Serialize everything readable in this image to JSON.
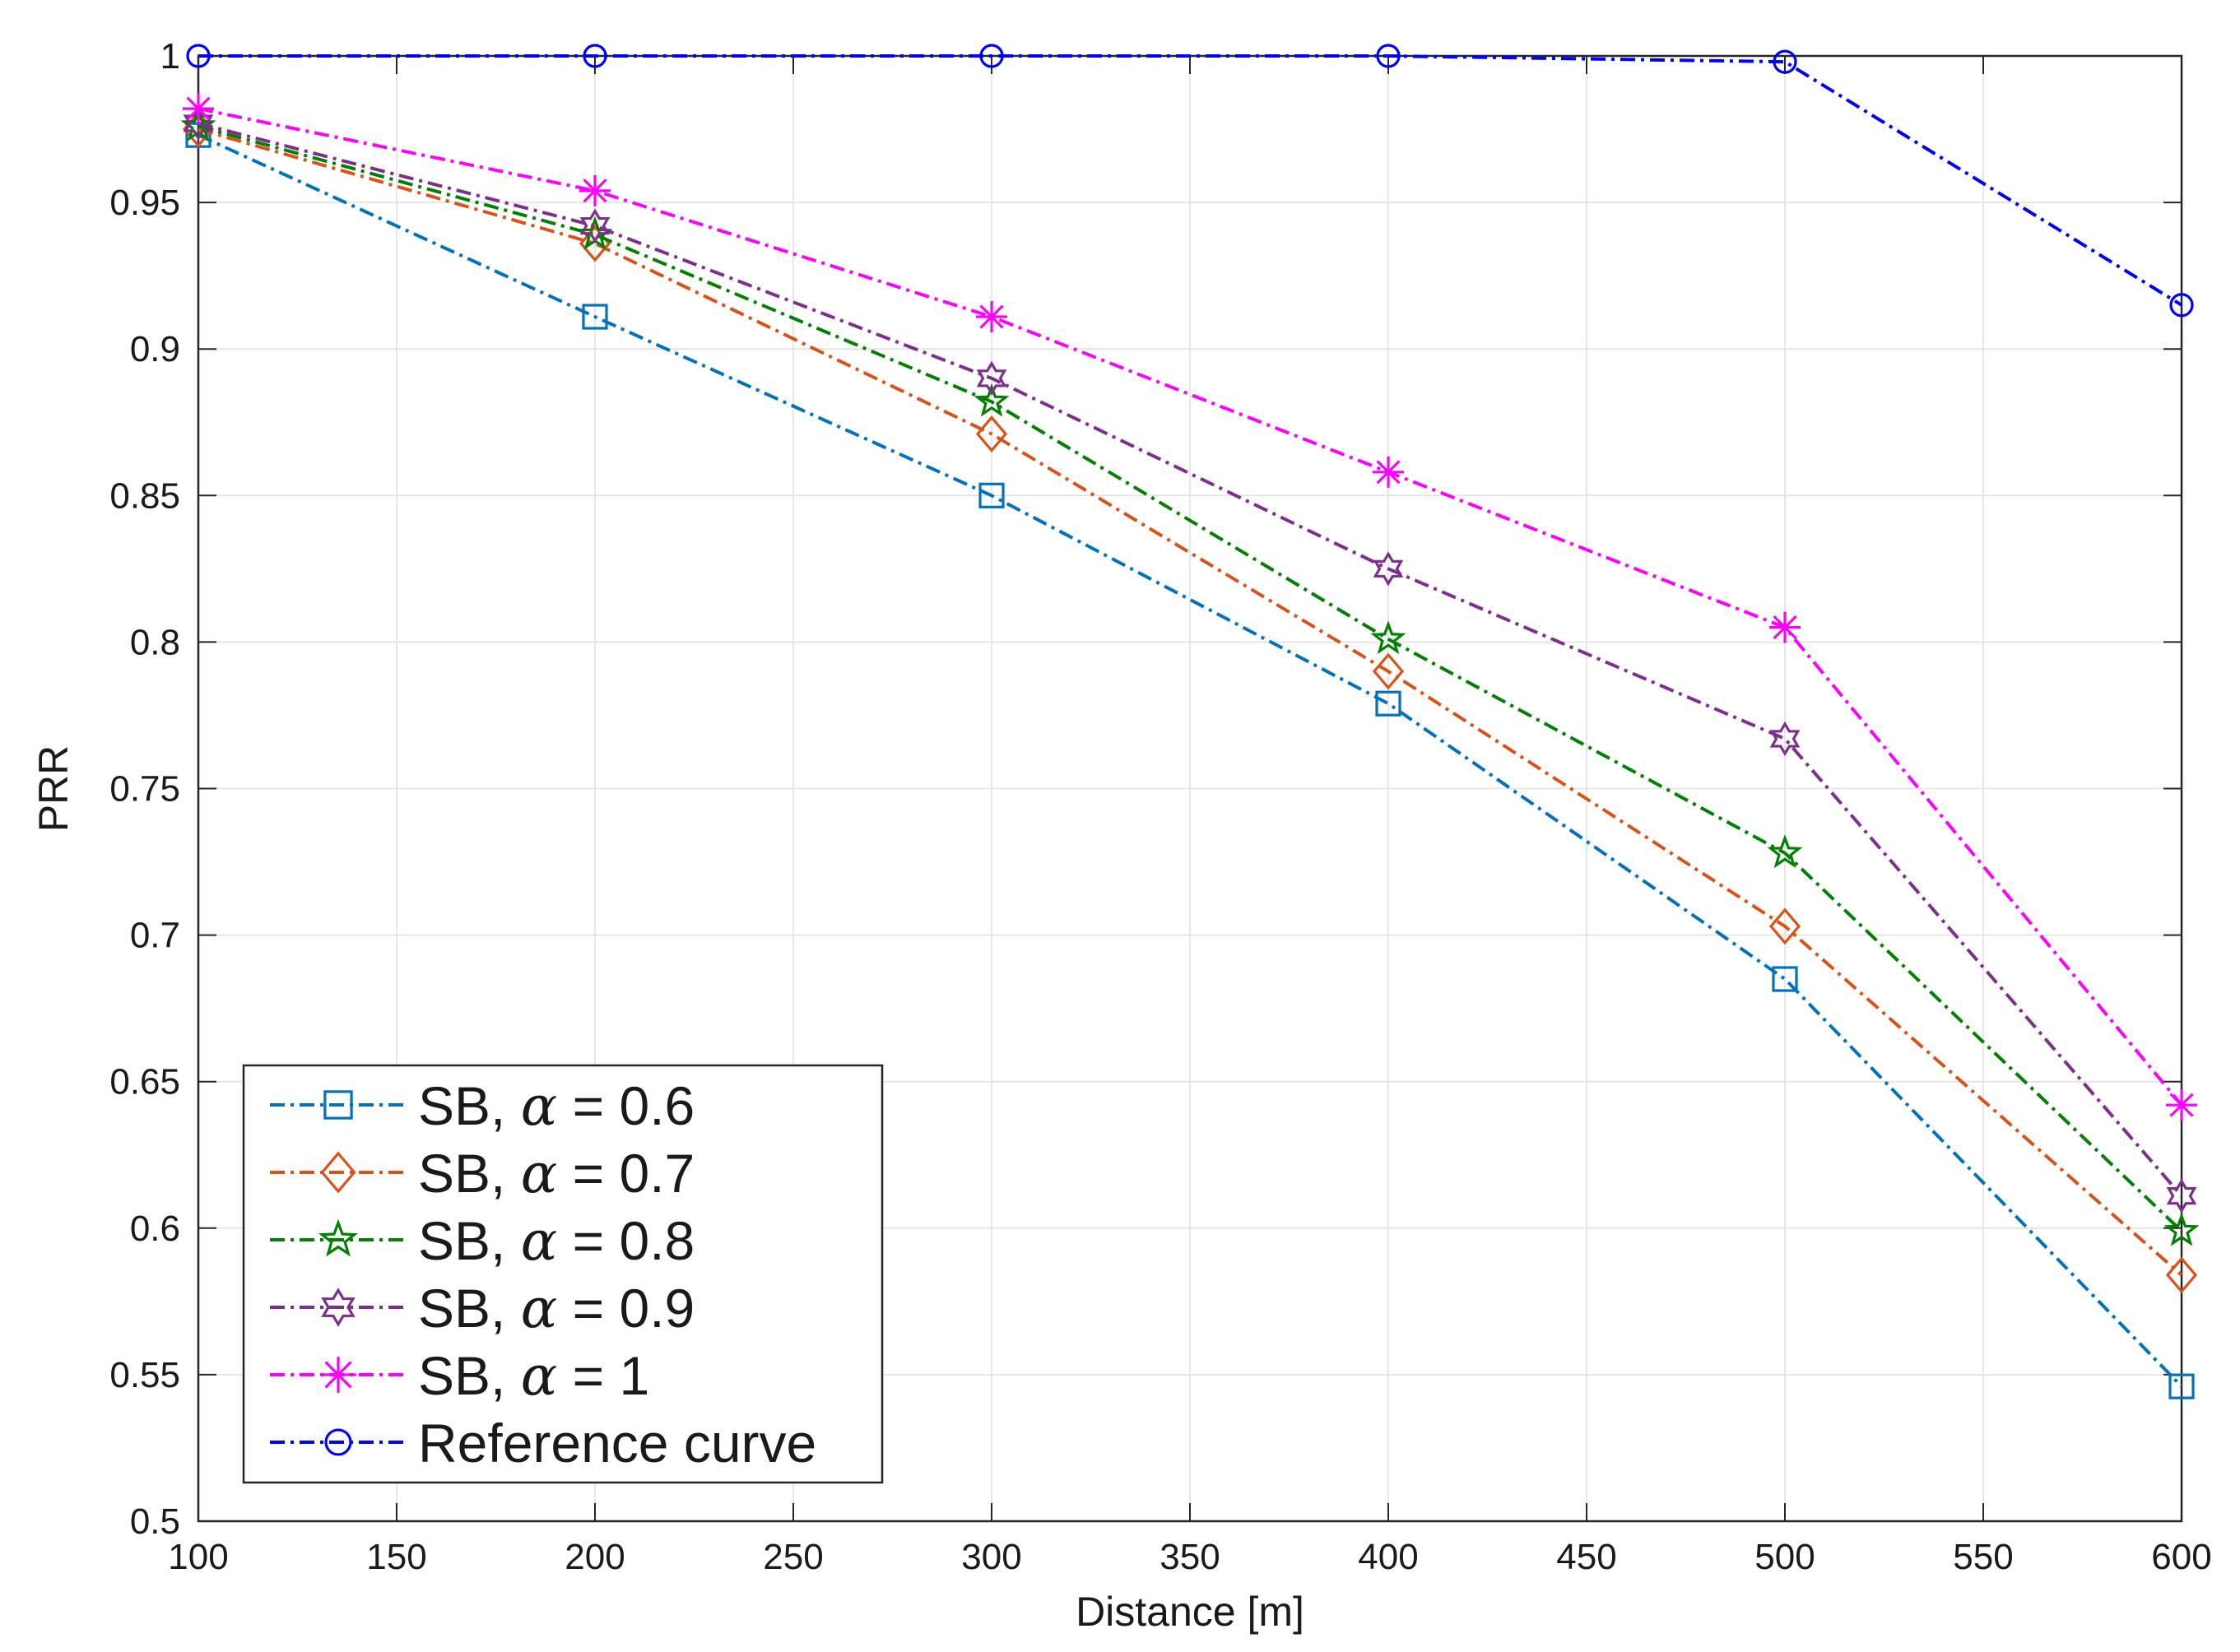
{
  "chart_data": {
    "type": "line",
    "title": "",
    "xlabel": "Distance [m]",
    "ylabel": "PRR",
    "xlim": [
      100,
      600
    ],
    "ylim": [
      0.5,
      1
    ],
    "grid": true,
    "xticks": [
      100,
      150,
      200,
      250,
      300,
      350,
      400,
      450,
      500,
      550,
      600
    ],
    "yticks": [
      0.5,
      0.55,
      0.6,
      0.65,
      0.7,
      0.75,
      0.8,
      0.85,
      0.9,
      0.95,
      1
    ],
    "xtick_labels": [
      "100",
      "150",
      "200",
      "250",
      "300",
      "350",
      "400",
      "450",
      "500",
      "550",
      "600"
    ],
    "ytick_labels": [
      "0.5",
      "0.55",
      "0.6",
      "0.65",
      "0.7",
      "0.75",
      "0.8",
      "0.85",
      "0.9",
      "0.95",
      "1"
    ],
    "x": [
      100,
      200,
      300,
      400,
      500,
      600
    ],
    "legend_position": "bottom-left",
    "series": [
      {
        "name": "SB, α = 0.6",
        "legend_prefix": "SB, ",
        "legend_symbol": "α",
        "legend_suffix": " = 0.6",
        "color": "#0072BD",
        "marker": "square",
        "values": [
          0.973,
          0.911,
          0.85,
          0.779,
          0.685,
          0.546
        ]
      },
      {
        "name": "SB, α = 0.7",
        "legend_prefix": "SB, ",
        "legend_symbol": "α",
        "legend_suffix": " = 0.7",
        "color": "#D95319",
        "marker": "diamond",
        "values": [
          0.975,
          0.936,
          0.871,
          0.79,
          0.703,
          0.584
        ]
      },
      {
        "name": "SB, α = 0.8",
        "legend_prefix": "SB, ",
        "legend_symbol": "α",
        "legend_suffix": " = 0.8",
        "color": "#008000",
        "marker": "pentagram",
        "values": [
          0.976,
          0.939,
          0.882,
          0.801,
          0.728,
          0.599
        ]
      },
      {
        "name": "SB, α = 0.9",
        "legend_prefix": "SB, ",
        "legend_symbol": "α",
        "legend_suffix": " = 0.9",
        "color": "#7E2F8E",
        "marker": "hexagram",
        "values": [
          0.977,
          0.942,
          0.89,
          0.825,
          0.767,
          0.611
        ]
      },
      {
        "name": "SB, α = 1",
        "legend_prefix": "SB, ",
        "legend_symbol": "α",
        "legend_suffix": " = 1",
        "color": "#FF00FF",
        "marker": "asterisk",
        "values": [
          0.982,
          0.954,
          0.911,
          0.858,
          0.805,
          0.642
        ]
      },
      {
        "name": "Reference curve",
        "legend_prefix": "Reference curve",
        "legend_symbol": "",
        "legend_suffix": "",
        "color": "#0000FF",
        "marker": "circle",
        "values": [
          1.0,
          1.0,
          1.0,
          1.0,
          0.998,
          0.915
        ]
      }
    ]
  }
}
